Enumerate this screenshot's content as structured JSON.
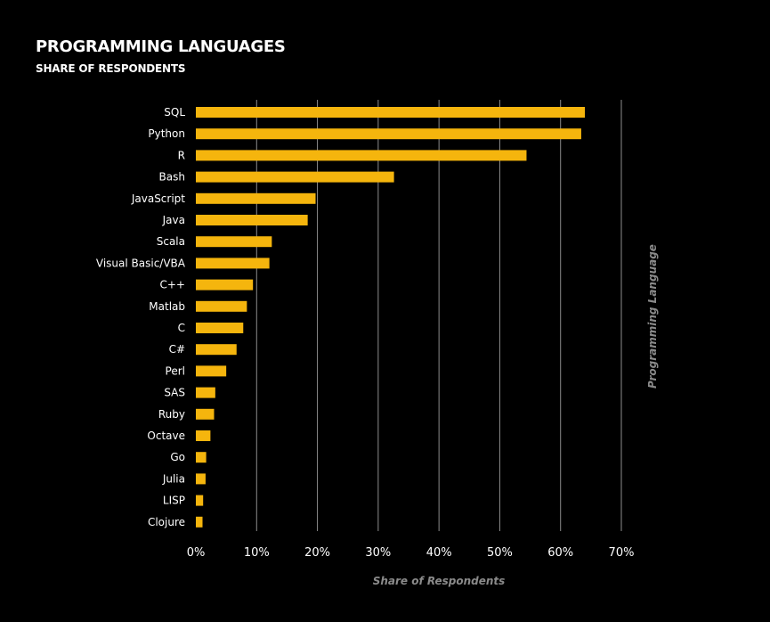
{
  "header": {
    "title": "PROGRAMMING LANGUAGES",
    "subtitle": "SHARE OF RESPONDENTS"
  },
  "colors": {
    "background": "#000000",
    "bar": "#f5b50d",
    "gridline": "#8c8c8c",
    "text": "#ffffff",
    "axis_title": "#8a8a8a"
  },
  "chart_data": {
    "type": "bar",
    "orientation": "horizontal",
    "title": "PROGRAMMING LANGUAGES",
    "subtitle": "SHARE OF RESPONDENTS",
    "xlabel": "Share of Respondents",
    "ylabel": "Programming Language",
    "xlim": [
      0,
      70
    ],
    "xticks": [
      0,
      10,
      20,
      30,
      40,
      50,
      60,
      70
    ],
    "xtick_labels": [
      "0%",
      "10%",
      "20%",
      "30%",
      "40%",
      "50%",
      "60%",
      "70%"
    ],
    "grid": "vertical",
    "categories": [
      "SQL",
      "Python",
      "R",
      "Bash",
      "JavaScript",
      "Java",
      "Scala",
      "Visual Basic/VBA",
      "C++",
      "Matlab",
      "C",
      "C#",
      "Perl",
      "SAS",
      "Ruby",
      "Octave",
      "Go",
      "Julia",
      "LISP",
      "Clojure"
    ],
    "values": [
      64,
      63.4,
      54.4,
      32.6,
      19.7,
      18.4,
      12.5,
      12.1,
      9.4,
      8.4,
      7.8,
      6.7,
      5.0,
      3.2,
      3.0,
      2.4,
      1.7,
      1.6,
      1.2,
      1.1
    ]
  }
}
